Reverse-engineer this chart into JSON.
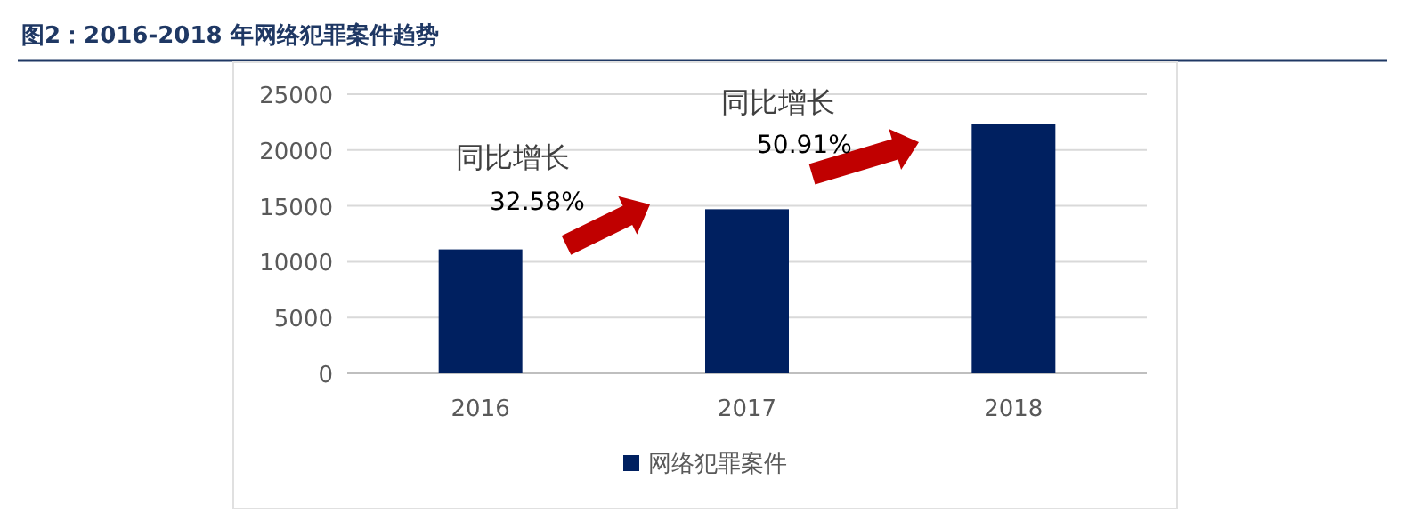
{
  "chart_data": {
    "type": "bar",
    "title": "图2：2016-2018 年网络犯罪案件趋势",
    "categories": [
      "2016",
      "2017",
      "2018"
    ],
    "series": [
      {
        "name": "网络犯罪案件",
        "color": "#002060",
        "values": [
          11100,
          14700,
          22350
        ]
      }
    ],
    "ylim": [
      0,
      25000
    ],
    "yticks": [
      0,
      5000,
      10000,
      15000,
      20000,
      25000
    ],
    "grid": "y",
    "legend": "bottom",
    "annotations": [
      "同比增长",
      "32.58%",
      "同比增长",
      "50.91%"
    ]
  }
}
